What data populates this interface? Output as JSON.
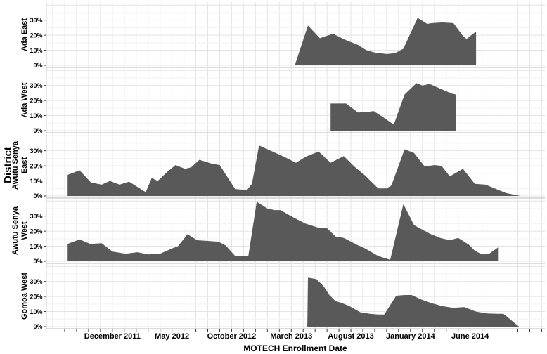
{
  "chart_data": {
    "type": "area",
    "title": "",
    "xlabel": "MOTECH Enrollment Date",
    "ylabel": "District",
    "fill_color": "#595959",
    "grid": true,
    "legend": "none",
    "x_unit": "months (index 0 = left edge of time axis, ~Aug 2011; 1 unit = 1 month)",
    "x_domain_months": [
      0,
      40.3
    ],
    "y_unit": "percent",
    "ylim_per_panel": [
      0,
      40
    ],
    "x_ticks": [
      {
        "m": 4,
        "label": "December 2011"
      },
      {
        "m": 9,
        "label": "May 2012"
      },
      {
        "m": 14,
        "label": "October 2012"
      },
      {
        "m": 19,
        "label": "March 2013"
      },
      {
        "m": 24,
        "label": "August 2013"
      },
      {
        "m": 29,
        "label": "January 2014"
      },
      {
        "m": 34,
        "label": "June 2014"
      }
    ],
    "y_ticks": [
      {
        "v": 0,
        "label": "0%"
      },
      {
        "v": 10,
        "label": "10%"
      },
      {
        "v": 20,
        "label": "20%"
      },
      {
        "v": 30,
        "label": "30%"
      }
    ],
    "facets": [
      {
        "label": "Ada East",
        "label_lines": [
          "Ada East"
        ],
        "points": [
          [
            19.3,
            0
          ],
          [
            20.4,
            26.5
          ],
          [
            21.4,
            18
          ],
          [
            22.5,
            21
          ],
          [
            23.5,
            17
          ],
          [
            24.6,
            13.5
          ],
          [
            25.3,
            10
          ],
          [
            26,
            8.5
          ],
          [
            27,
            7.5
          ],
          [
            27.7,
            8
          ],
          [
            28.4,
            11
          ],
          [
            29.6,
            31.5
          ],
          [
            30.4,
            27.5
          ],
          [
            30.8,
            28
          ],
          [
            31.7,
            28.5
          ],
          [
            32.6,
            28
          ],
          [
            33.4,
            19.5
          ],
          [
            33.7,
            17.5
          ],
          [
            34.5,
            22.5
          ],
          [
            34.5,
            0
          ]
        ]
      },
      {
        "label": "Ada West",
        "label_lines": [
          "Ada West"
        ],
        "points": [
          [
            22.3,
            0
          ],
          [
            22.3,
            18
          ],
          [
            23.6,
            18
          ],
          [
            24.6,
            12
          ],
          [
            25.5,
            12.5
          ],
          [
            25.9,
            13
          ],
          [
            26.7,
            9
          ],
          [
            27.6,
            4
          ],
          [
            28.5,
            24
          ],
          [
            29.5,
            31.5
          ],
          [
            30.0,
            30
          ],
          [
            30.6,
            31
          ],
          [
            31.6,
            27.5
          ],
          [
            32.5,
            24.5
          ],
          [
            32.8,
            24
          ],
          [
            32.8,
            0
          ]
        ]
      },
      {
        "label": "Awutu Senya East",
        "label_lines": [
          "Awutu Senya",
          "East"
        ],
        "points": [
          [
            0.25,
            14
          ],
          [
            1.25,
            17
          ],
          [
            2.2,
            9
          ],
          [
            3.1,
            7.5
          ],
          [
            3.8,
            10
          ],
          [
            4.6,
            7.5
          ],
          [
            5.4,
            9.5
          ],
          [
            6.3,
            5
          ],
          [
            6.8,
            2.5
          ],
          [
            7.3,
            12
          ],
          [
            7.8,
            10
          ],
          [
            8.6,
            16
          ],
          [
            9.3,
            20.5
          ],
          [
            10.1,
            18
          ],
          [
            10.6,
            19
          ],
          [
            11.3,
            24
          ],
          [
            12.3,
            21.5
          ],
          [
            13,
            20.5
          ],
          [
            14.3,
            4.5
          ],
          [
            15.3,
            4
          ],
          [
            15.7,
            8
          ],
          [
            16.3,
            33.5
          ],
          [
            17.3,
            30
          ],
          [
            18.4,
            26
          ],
          [
            19.4,
            22
          ],
          [
            20.2,
            26
          ],
          [
            21.3,
            29.5
          ],
          [
            22.3,
            22
          ],
          [
            23.4,
            26.5
          ],
          [
            24.3,
            19.5
          ],
          [
            25.2,
            13.5
          ],
          [
            26.3,
            5
          ],
          [
            27,
            5
          ],
          [
            27.4,
            7
          ],
          [
            28.5,
            31
          ],
          [
            29.3,
            28.5
          ],
          [
            30.2,
            19.5
          ],
          [
            31,
            20.5
          ],
          [
            31.6,
            20
          ],
          [
            32.3,
            13
          ],
          [
            33.4,
            18
          ],
          [
            34.4,
            8
          ],
          [
            35.3,
            7.5
          ],
          [
            36.2,
            4.5
          ],
          [
            37,
            2
          ],
          [
            38.2,
            0
          ]
        ]
      },
      {
        "label": "Awutu Senya West",
        "label_lines": [
          "Awutu Senya",
          "West"
        ],
        "points": [
          [
            0.25,
            11.5
          ],
          [
            1.25,
            14.5
          ],
          [
            2.15,
            11.5
          ],
          [
            3.1,
            12
          ],
          [
            4,
            6.5
          ],
          [
            5.1,
            5
          ],
          [
            6.1,
            6
          ],
          [
            7,
            4.5
          ],
          [
            8,
            5
          ],
          [
            9,
            8.5
          ],
          [
            9.5,
            10
          ],
          [
            10.3,
            18
          ],
          [
            11.1,
            14
          ],
          [
            12,
            13.5
          ],
          [
            12.9,
            13
          ],
          [
            13.5,
            10.5
          ],
          [
            14.3,
            3.5
          ],
          [
            15.4,
            3.5
          ],
          [
            16.1,
            39.5
          ],
          [
            17,
            35
          ],
          [
            17.6,
            34
          ],
          [
            18.1,
            34
          ],
          [
            19.2,
            29
          ],
          [
            20.2,
            25
          ],
          [
            21.2,
            22.5
          ],
          [
            22,
            22
          ],
          [
            22.7,
            16.5
          ],
          [
            23.4,
            15.5
          ],
          [
            24.5,
            11
          ],
          [
            25.2,
            8.5
          ],
          [
            26.3,
            3.5
          ],
          [
            27.3,
            1
          ],
          [
            28.4,
            38
          ],
          [
            29.3,
            24
          ],
          [
            30,
            21
          ],
          [
            30.7,
            18
          ],
          [
            31.5,
            15.5
          ],
          [
            32.3,
            14
          ],
          [
            33,
            15.5
          ],
          [
            33.9,
            11
          ],
          [
            34.4,
            7
          ],
          [
            35,
            4.5
          ],
          [
            35.6,
            5
          ],
          [
            36.4,
            9.5
          ],
          [
            36.4,
            0
          ]
        ]
      },
      {
        "label": "Gomoa West",
        "label_lines": [
          "Gomoa West"
        ],
        "points": [
          [
            20.35,
            0
          ],
          [
            20.4,
            32.5
          ],
          [
            21.1,
            31.5
          ],
          [
            21.7,
            27
          ],
          [
            22.2,
            21
          ],
          [
            22.7,
            17
          ],
          [
            23.3,
            15.5
          ],
          [
            23.9,
            13.5
          ],
          [
            24.8,
            9.5
          ],
          [
            25.6,
            8.5
          ],
          [
            26.3,
            8
          ],
          [
            26.8,
            8
          ],
          [
            27.8,
            20.5
          ],
          [
            28.5,
            21
          ],
          [
            29.1,
            21
          ],
          [
            29.9,
            18
          ],
          [
            30.8,
            15.5
          ],
          [
            31.7,
            13.5
          ],
          [
            32.6,
            12.5
          ],
          [
            33.5,
            13
          ],
          [
            34.5,
            10
          ],
          [
            35.4,
            8.7
          ],
          [
            36.3,
            8.5
          ],
          [
            36.8,
            8.5
          ],
          [
            38.1,
            0
          ]
        ]
      }
    ]
  }
}
